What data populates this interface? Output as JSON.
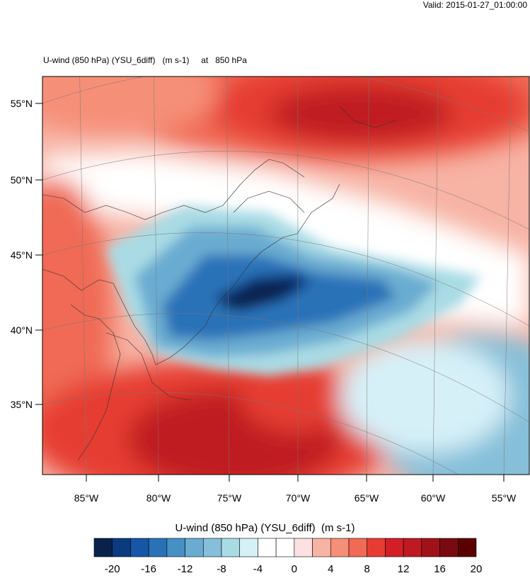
{
  "header": {
    "valid_text": "Valid: 2015-01-27_01:00:00",
    "map_title": "U-wind (850 hPa) (YSU_6diff)   (m s-1)     at   850 hPa"
  },
  "map": {
    "lat_labels": [
      "55°N",
      "50°N",
      "45°N",
      "40°N",
      "35°N"
    ],
    "lon_labels": [
      "85°W",
      "80°W",
      "75°W",
      "70°W",
      "65°W",
      "60°W",
      "55°W"
    ]
  },
  "colorbar": {
    "title": "U-wind (850 hPa) (YSU_6diff)  (m s-1)",
    "colors": [
      "#08224c",
      "#0a3b80",
      "#1656a7",
      "#2a72b8",
      "#4690c4",
      "#6aacd1",
      "#86bfd9",
      "#a9dbe5",
      "#d6f0f8",
      "#ffffff",
      "#ffffff",
      "#fde0e2",
      "#f7b3a4",
      "#f68f78",
      "#f06a55",
      "#e63c32",
      "#d21f26",
      "#bf1a21",
      "#a0121a",
      "#7a0a12",
      "#5a0000"
    ],
    "tick_labels": [
      "-20",
      "-16",
      "-12",
      "-8",
      "-4",
      "0",
      "4",
      "8",
      "12",
      "16",
      "20"
    ]
  }
}
